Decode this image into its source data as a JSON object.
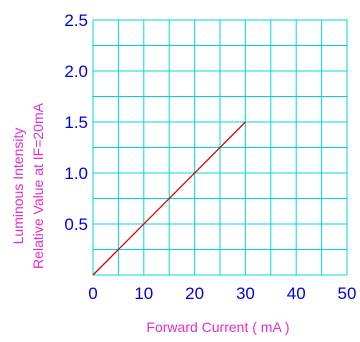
{
  "chart_data": {
    "type": "line",
    "title": "",
    "xlabel": "Forward Current ( mA )",
    "ylabel_lines": [
      "Luminous Intensity",
      "Relative Value at IF=20mA"
    ],
    "xlim": [
      0,
      50
    ],
    "ylim": [
      0,
      2.5
    ],
    "x_ticks": [
      0,
      10,
      20,
      30,
      40,
      50
    ],
    "x_tick_labels": [
      "0",
      "10",
      "20",
      "30",
      "40",
      "50"
    ],
    "y_ticks": [
      0.5,
      1.0,
      1.5,
      2.0,
      2.5
    ],
    "y_tick_labels": [
      "0.5",
      "1.0",
      "1.5",
      "2.0",
      "2.5"
    ],
    "grid": true,
    "x_grid_step": 5,
    "y_grid_step": 0.25,
    "series": [
      {
        "x": [
          0,
          30
        ],
        "y": [
          0,
          1.5
        ],
        "color": "#dd0000"
      }
    ],
    "colors": {
      "grid": "#00d8d8",
      "tick_labels": "#0000dd",
      "axis_titles": "#e030c8"
    }
  }
}
